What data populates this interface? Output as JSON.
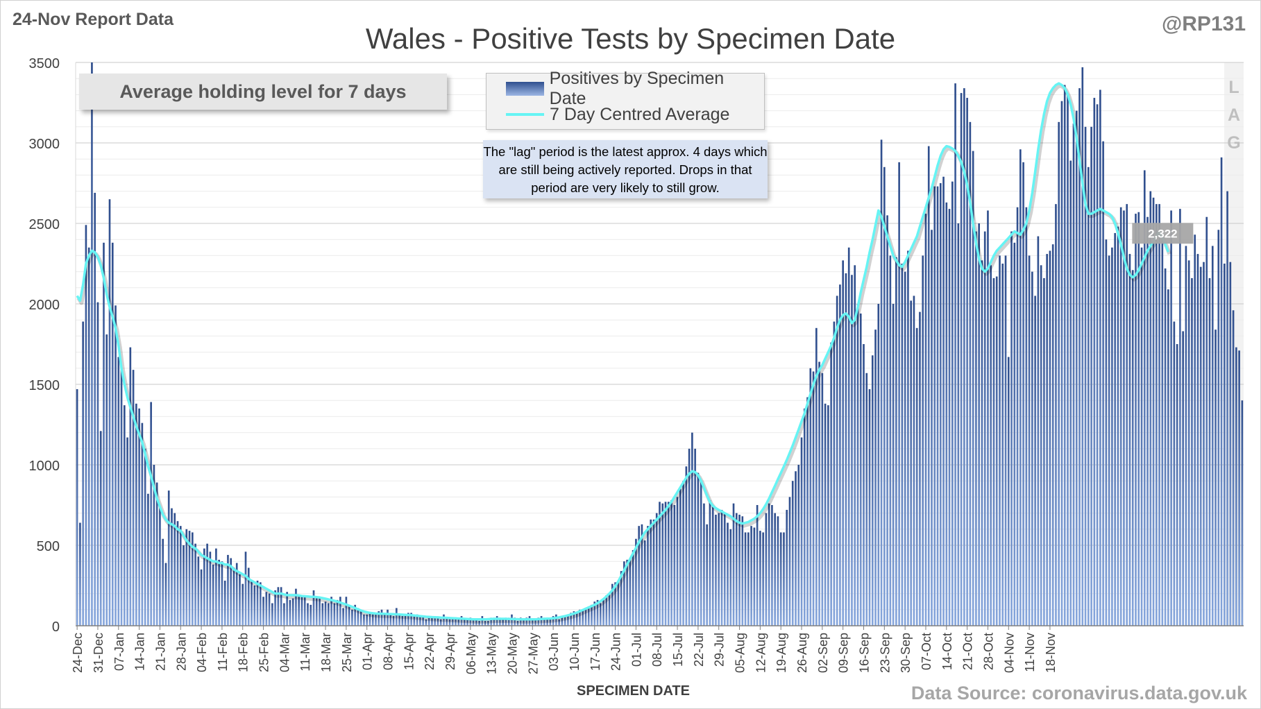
{
  "header": {
    "report_label": "24-Nov Report Data",
    "handle": "@RP131"
  },
  "chart_data": {
    "type": "bar",
    "title": "Wales - Positive Tests by Specimen Date",
    "xlabel": "SPECIMEN DATE",
    "ylabel": "",
    "ylim": [
      0,
      3500
    ],
    "yticks": [
      0,
      500,
      1000,
      1500,
      2000,
      2500,
      3000,
      3500
    ],
    "grid": true,
    "legend_position": "top-center",
    "x_start": "2021-12-24",
    "x_end": "2022-11-24",
    "xtick_labels": [
      "24-Dec",
      "31-Dec",
      "07-Jan",
      "14-Jan",
      "21-Jan",
      "28-Jan",
      "04-Feb",
      "11-Feb",
      "18-Feb",
      "25-Feb",
      "04-Mar",
      "11-Mar",
      "18-Mar",
      "25-Mar",
      "01-Apr",
      "08-Apr",
      "15-Apr",
      "22-Apr",
      "29-Apr",
      "06-May",
      "13-May",
      "20-May",
      "27-May",
      "03-Jun",
      "10-Jun",
      "17-Jun",
      "24-Jun",
      "01-Jul",
      "08-Jul",
      "15-Jul",
      "22-Jul",
      "29-Jul",
      "05-Aug",
      "12-Aug",
      "19-Aug",
      "26-Aug",
      "02-Sep",
      "09-Sep",
      "16-Sep",
      "23-Sep",
      "30-Sep",
      "07-Oct",
      "14-Oct",
      "21-Oct",
      "28-Oct",
      "04-Nov",
      "11-Nov",
      "18-Nov"
    ],
    "series": [
      {
        "name": "Positives by Specimen Date",
        "type": "bar",
        "values": [
          1470,
          640,
          1890,
          2490,
          2350,
          3500,
          2690,
          2010,
          1210,
          2380,
          1810,
          2650,
          2380,
          1990,
          1670,
          1600,
          1370,
          1170,
          1730,
          1590,
          1380,
          1350,
          1260,
          1100,
          820,
          1390,
          1000,
          890,
          730,
          540,
          390,
          840,
          730,
          700,
          650,
          620,
          500,
          600,
          590,
          580,
          510,
          430,
          350,
          480,
          510,
          460,
          380,
          480,
          410,
          400,
          280,
          440,
          420,
          360,
          390,
          320,
          260,
          460,
          360,
          280,
          250,
          280,
          270,
          180,
          210,
          200,
          140,
          220,
          240,
          240,
          140,
          210,
          160,
          170,
          230,
          180,
          190,
          190,
          140,
          130,
          220,
          170,
          180,
          140,
          150,
          140,
          180,
          140,
          160,
          180,
          110,
          180,
          120,
          100,
          130,
          110,
          90,
          70,
          70,
          80,
          70,
          80,
          90,
          100,
          80,
          100,
          70,
          60,
          110,
          70,
          60,
          60,
          80,
          80,
          60,
          70,
          60,
          60,
          40,
          60,
          50,
          60,
          50,
          40,
          70,
          50,
          40,
          50,
          50,
          40,
          60,
          40,
          40,
          50,
          40,
          40,
          30,
          60,
          30,
          30,
          50,
          50,
          60,
          50,
          40,
          50,
          50,
          70,
          50,
          30,
          50,
          40,
          50,
          60,
          40,
          40,
          50,
          60,
          50,
          40,
          40,
          60,
          70,
          40,
          50,
          60,
          70,
          80,
          90,
          80,
          100,
          100,
          110,
          120,
          130,
          150,
          160,
          140,
          170,
          190,
          200,
          260,
          270,
          280,
          340,
          400,
          410,
          420,
          470,
          540,
          620,
          630,
          530,
          620,
          660,
          660,
          700,
          770,
          760,
          770,
          770,
          780,
          750,
          800,
          850,
          900,
          990,
          1100,
          1200,
          1100,
          950,
          900,
          760,
          630,
          780,
          740,
          690,
          700,
          720,
          700,
          640,
          600,
          760,
          700,
          690,
          680,
          580,
          580,
          620,
          610,
          750,
          590,
          580,
          700,
          760,
          750,
          700,
          680,
          580,
          580,
          720,
          800,
          900,
          960,
          1000,
          1170,
          1350,
          1420,
          1600,
          1580,
          1850,
          1640,
          1570,
          1380,
          1370,
          1760,
          1890,
          2050,
          2120,
          2270,
          2190,
          2350,
          2180,
          2240,
          2000,
          1940,
          1750,
          1570,
          1470,
          1680,
          1840,
          2000,
          3020,
          2850,
          2550,
          2300,
          2000,
          2290,
          2880,
          2250,
          2200,
          2330,
          2020,
          2050,
          1850,
          1950,
          2300,
          2560,
          2980,
          2460,
          2730,
          2730,
          2750,
          2790,
          2630,
          2590,
          2760,
          3370,
          2500,
          3310,
          3340,
          3280,
          3130,
          2950,
          2450,
          2500,
          2270,
          2450,
          2580,
          2240,
          2160,
          2170,
          2300,
          2250,
          2300,
          1670,
          2450,
          2380,
          2600,
          2960,
          2880,
          2600,
          2300,
          2200,
          2050,
          2420,
          2240,
          2160,
          2310,
          2330,
          2370,
          2620,
          3130,
          3260,
          3360,
          3300,
          2890,
          3120,
          3200,
          3340,
          3470,
          3100,
          2850,
          3100,
          3280,
          3240,
          3330,
          3010,
          2400,
          2300,
          2350,
          2440,
          2480,
          2600,
          2580,
          2620,
          2310,
          2210,
          2560,
          2570,
          2350,
          2830,
          2540,
          2700,
          2660,
          2620,
          2620,
          2440,
          2220,
          2090,
          2580,
          1890,
          1750,
          2590,
          1830,
          2360,
          2270,
          2160,
          2430,
          2310,
          2230,
          2260,
          2540,
          2160,
          2360,
          1840,
          2460,
          2910,
          2250,
          2700,
          2260,
          1960,
          1730,
          1710,
          1400
        ]
      },
      {
        "name": "7 Day Centred Average",
        "type": "line",
        "color": "#66f4f4",
        "values": [
          2050,
          2020,
          2120,
          2250,
          2300,
          2330,
          2320,
          2290,
          2240,
          2160,
          2060,
          1980,
          1920,
          1850,
          1740,
          1600,
          1500,
          1420,
          1360,
          1300,
          1240,
          1190,
          1140,
          1070,
          990,
          930,
          860,
          790,
          740,
          690,
          660,
          640,
          630,
          620,
          600,
          590,
          560,
          530,
          510,
          490,
          480,
          460,
          440,
          430,
          420,
          410,
          400,
          400,
          390,
          390,
          380,
          380,
          370,
          350,
          340,
          330,
          320,
          310,
          290,
          280,
          270,
          260,
          250,
          240,
          230,
          220,
          210,
          200,
          200,
          200,
          195,
          190,
          190,
          190,
          190,
          188,
          185,
          183,
          182,
          180,
          180,
          178,
          176,
          172,
          168,
          164,
          160,
          155,
          150,
          144,
          138,
          132,
          125,
          118,
          110,
          102,
          95,
          89,
          84,
          80,
          78,
          76,
          75,
          74,
          74,
          73,
          73,
          72,
          71,
          70,
          69,
          68,
          67,
          66,
          64,
          62,
          60,
          58,
          56,
          55,
          54,
          53,
          52,
          51,
          50,
          49,
          48,
          47,
          46,
          45,
          44,
          43,
          42,
          41,
          40,
          40,
          40,
          40,
          40,
          41,
          42,
          43,
          43,
          43,
          43,
          43,
          42,
          42,
          41,
          41,
          40,
          40,
          40,
          40,
          40,
          40,
          41,
          42,
          43,
          44,
          45,
          47,
          49,
          52,
          56,
          60,
          65,
          70,
          76,
          82,
          90,
          98,
          106,
          114,
          122,
          130,
          140,
          152,
          166,
          182,
          200,
          220,
          245,
          275,
          310,
          345,
          380,
          415,
          450,
          485,
          520,
          550,
          580,
          600,
          620,
          640,
          660,
          680,
          700,
          720,
          745,
          770,
          800,
          830,
          860,
          890,
          920,
          945,
          960,
          955,
          935,
          900,
          855,
          810,
          770,
          745,
          730,
          720,
          710,
          700,
          690,
          680,
          665,
          650,
          640,
          635,
          640,
          645,
          655,
          665,
          680,
          700,
          725,
          755,
          790,
          830,
          870,
          910,
          950,
          990,
          1030,
          1075,
          1120,
          1170,
          1220,
          1270,
          1320,
          1380,
          1440,
          1500,
          1550,
          1590,
          1620,
          1660,
          1700,
          1740,
          1790,
          1850,
          1900,
          1930,
          1940,
          1920,
          1880,
          1900,
          1980,
          2070,
          2150,
          2230,
          2320,
          2400,
          2490,
          2580,
          2540,
          2480,
          2420,
          2360,
          2300,
          2270,
          2240,
          2230,
          2260,
          2300,
          2340,
          2380,
          2420,
          2480,
          2540,
          2600,
          2660,
          2720,
          2790,
          2860,
          2920,
          2960,
          2980,
          2975,
          2965,
          2950,
          2920,
          2880,
          2820,
          2740,
          2630,
          2500,
          2380,
          2280,
          2220,
          2200,
          2220,
          2260,
          2300,
          2330,
          2350,
          2370,
          2390,
          2410,
          2430,
          2450,
          2440,
          2430,
          2460,
          2500,
          2580,
          2690,
          2820,
          2960,
          3080,
          3180,
          3260,
          3310,
          3340,
          3360,
          3370,
          3360,
          3340,
          3300,
          3240,
          3150,
          3030,
          2890,
          2750,
          2620,
          2560,
          2560,
          2570,
          2580,
          2590,
          2580,
          2570,
          2560,
          2540,
          2500,
          2440,
          2370,
          2290,
          2220,
          2180,
          2165,
          2180,
          2210,
          2250,
          2290,
          2330,
          2360,
          2390,
          2420,
          2450,
          2410,
          2370,
          2322
        ]
      }
    ],
    "annotations": {
      "holding_box": "Average holding level for 7 days",
      "lag_note": "The \"lag\" period is the latest approx. 4 days which are still being actively reported. Drops in that period are very likely to still grow.",
      "lag_letters": [
        "L",
        "A",
        "G"
      ],
      "latest_value_label": "2,322"
    },
    "source": "Data Source: coronavirus.data.gov.uk"
  }
}
